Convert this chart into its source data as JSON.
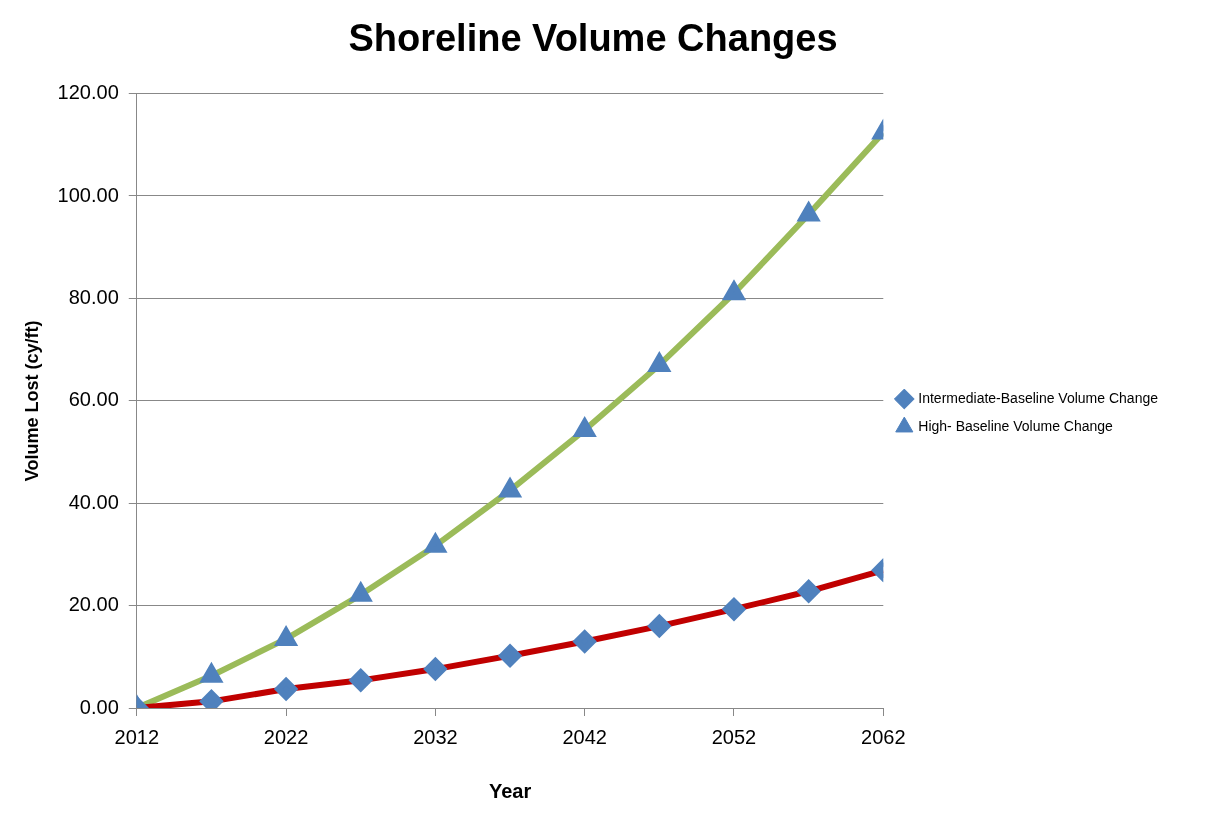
{
  "chart_data": {
    "type": "line",
    "title": "Shoreline Volume Changes",
    "xlabel": "Year",
    "ylabel": "Volume Lost (cy/ft)",
    "x": [
      2012,
      2017,
      2022,
      2027,
      2032,
      2037,
      2042,
      2047,
      2052,
      2057,
      2062
    ],
    "series": [
      {
        "name": "Intermediate-Baseline Volume Change",
        "color": "#c00000",
        "marker": "diamond",
        "values": [
          0,
          1.3,
          3.7,
          5.4,
          7.6,
          10.2,
          13,
          16,
          19.3,
          22.8,
          26.9
        ]
      },
      {
        "name": "High- Baseline Volume Change",
        "color": "#9bbb59",
        "marker": "triangle",
        "values": [
          0,
          6.3,
          13.5,
          22.1,
          31.7,
          42.5,
          54.3,
          67,
          81,
          96.4,
          112.4
        ]
      }
    ],
    "xlim": [
      2012,
      2062
    ],
    "xticks": [
      2012,
      2022,
      2032,
      2042,
      2052,
      2062
    ],
    "ylim": [
      0,
      120
    ],
    "yticks": [
      {
        "value": 0,
        "label": "0.00"
      },
      {
        "value": 20,
        "label": "20.00"
      },
      {
        "value": 40,
        "label": "40.00"
      },
      {
        "value": 60,
        "label": "60.00"
      },
      {
        "value": 80,
        "label": "80.00"
      },
      {
        "value": 100,
        "label": "100.00"
      },
      {
        "value": 120,
        "label": "120.00"
      }
    ],
    "grid": "y",
    "legend": "right"
  }
}
